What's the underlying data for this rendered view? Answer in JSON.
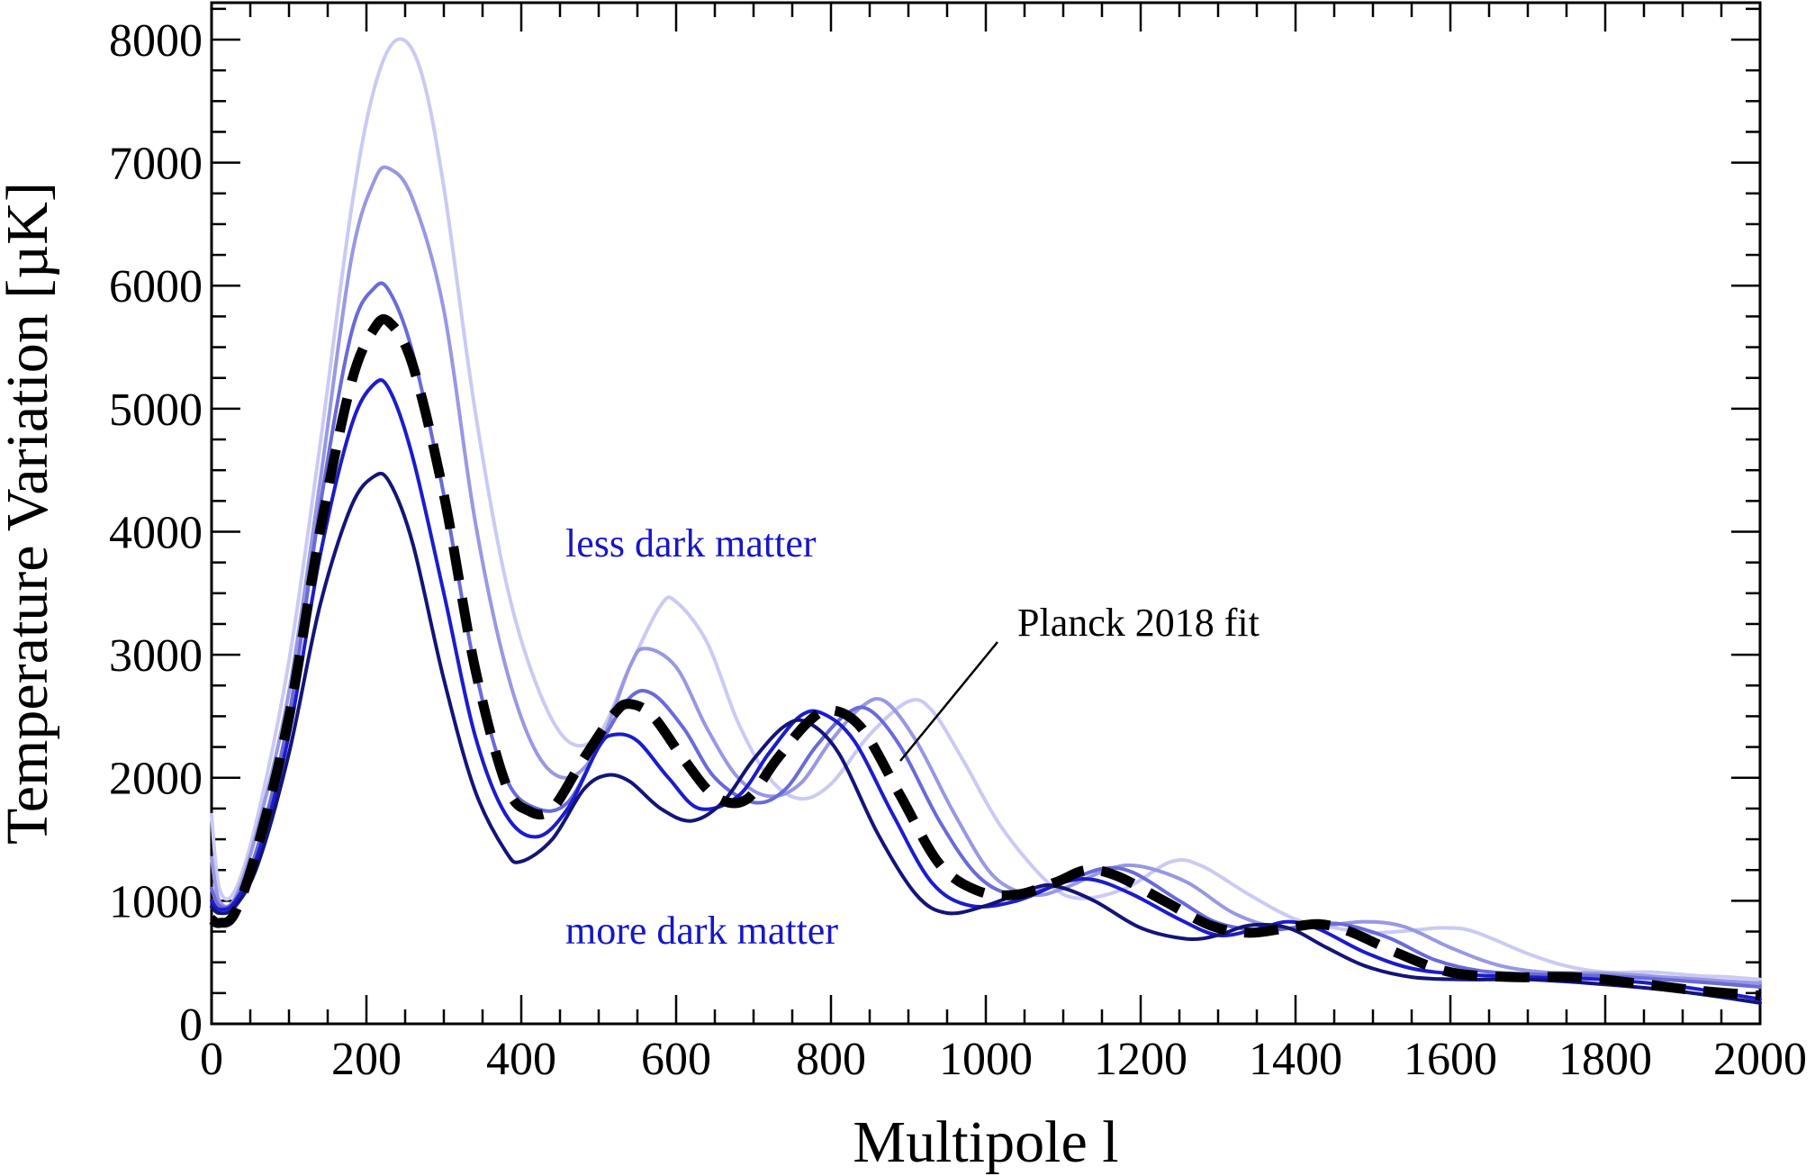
{
  "chart_data": {
    "type": "line",
    "xlabel": "Multipole l",
    "ylabel": "Temperature Variation [µK]",
    "xlim": [
      0,
      2000
    ],
    "ylim": [
      0,
      8300
    ],
    "xticks": [
      0,
      200,
      400,
      600,
      800,
      1000,
      1200,
      1400,
      1600,
      1800,
      2000
    ],
    "yticks": [
      0,
      1000,
      2000,
      3000,
      4000,
      5000,
      6000,
      7000,
      8000
    ],
    "grid": false,
    "legend": "none",
    "annotations": {
      "less": "less dark matter",
      "more": "more dark matter",
      "fit": "Planck 2018 fit"
    },
    "series": [
      {
        "color": "#cacaf4",
        "width": 4,
        "dash": false,
        "points": [
          [
            0,
            1700
          ],
          [
            10,
            1100
          ],
          [
            30,
            1080
          ],
          [
            60,
            1700
          ],
          [
            100,
            2950
          ],
          [
            140,
            4700
          ],
          [
            180,
            6600
          ],
          [
            210,
            7600
          ],
          [
            240,
            8000
          ],
          [
            270,
            7750
          ],
          [
            300,
            6800
          ],
          [
            340,
            5000
          ],
          [
            380,
            3600
          ],
          [
            420,
            2750
          ],
          [
            460,
            2300
          ],
          [
            500,
            2350
          ],
          [
            540,
            2900
          ],
          [
            580,
            3400
          ],
          [
            600,
            3430
          ],
          [
            640,
            3100
          ],
          [
            680,
            2450
          ],
          [
            720,
            2000
          ],
          [
            760,
            1830
          ],
          [
            800,
            1950
          ],
          [
            850,
            2350
          ],
          [
            900,
            2620
          ],
          [
            930,
            2550
          ],
          [
            970,
            2150
          ],
          [
            1020,
            1600
          ],
          [
            1080,
            1150
          ],
          [
            1120,
            1020
          ],
          [
            1180,
            1100
          ],
          [
            1240,
            1320
          ],
          [
            1280,
            1280
          ],
          [
            1340,
            1050
          ],
          [
            1400,
            850
          ],
          [
            1450,
            780
          ],
          [
            1500,
            740
          ],
          [
            1550,
            760
          ],
          [
            1590,
            780
          ],
          [
            1630,
            750
          ],
          [
            1700,
            570
          ],
          [
            1750,
            470
          ],
          [
            1800,
            420
          ],
          [
            1860,
            420
          ],
          [
            1920,
            390
          ],
          [
            1960,
            380
          ],
          [
            2000,
            360
          ]
        ]
      },
      {
        "color": "#9898e2",
        "width": 4,
        "dash": false,
        "points": [
          [
            0,
            1350
          ],
          [
            10,
            1000
          ],
          [
            30,
            1020
          ],
          [
            60,
            1600
          ],
          [
            100,
            2700
          ],
          [
            140,
            4400
          ],
          [
            180,
            6200
          ],
          [
            210,
            6850
          ],
          [
            230,
            6950
          ],
          [
            260,
            6700
          ],
          [
            300,
            5800
          ],
          [
            340,
            4100
          ],
          [
            380,
            2900
          ],
          [
            420,
            2200
          ],
          [
            460,
            2000
          ],
          [
            500,
            2250
          ],
          [
            540,
            2900
          ],
          [
            560,
            3050
          ],
          [
            600,
            2900
          ],
          [
            640,
            2400
          ],
          [
            680,
            2000
          ],
          [
            720,
            1850
          ],
          [
            760,
            1950
          ],
          [
            800,
            2300
          ],
          [
            840,
            2580
          ],
          [
            870,
            2620
          ],
          [
            910,
            2300
          ],
          [
            960,
            1700
          ],
          [
            1010,
            1200
          ],
          [
            1060,
            1050
          ],
          [
            1100,
            1100
          ],
          [
            1160,
            1260
          ],
          [
            1200,
            1280
          ],
          [
            1260,
            1150
          ],
          [
            1320,
            900
          ],
          [
            1380,
            780
          ],
          [
            1440,
            800
          ],
          [
            1490,
            830
          ],
          [
            1540,
            790
          ],
          [
            1600,
            620
          ],
          [
            1660,
            480
          ],
          [
            1720,
            420
          ],
          [
            1800,
            410
          ],
          [
            1900,
            370
          ],
          [
            2000,
            330
          ]
        ]
      },
      {
        "color": "#6a6ad8",
        "width": 4,
        "dash": false,
        "points": [
          [
            0,
            1100
          ],
          [
            10,
            960
          ],
          [
            30,
            1000
          ],
          [
            60,
            1450
          ],
          [
            100,
            2500
          ],
          [
            140,
            4200
          ],
          [
            180,
            5600
          ],
          [
            210,
            5980
          ],
          [
            230,
            5950
          ],
          [
            260,
            5450
          ],
          [
            300,
            4300
          ],
          [
            340,
            2900
          ],
          [
            380,
            2000
          ],
          [
            420,
            1750
          ],
          [
            460,
            1800
          ],
          [
            500,
            2250
          ],
          [
            540,
            2650
          ],
          [
            570,
            2680
          ],
          [
            610,
            2400
          ],
          [
            650,
            2000
          ],
          [
            700,
            1800
          ],
          [
            740,
            1900
          ],
          [
            780,
            2250
          ],
          [
            820,
            2520
          ],
          [
            850,
            2550
          ],
          [
            890,
            2250
          ],
          [
            940,
            1650
          ],
          [
            990,
            1200
          ],
          [
            1040,
            1050
          ],
          [
            1100,
            1150
          ],
          [
            1150,
            1260
          ],
          [
            1190,
            1230
          ],
          [
            1250,
            1000
          ],
          [
            1300,
            820
          ],
          [
            1360,
            760
          ],
          [
            1420,
            800
          ],
          [
            1460,
            810
          ],
          [
            1520,
            700
          ],
          [
            1580,
            520
          ],
          [
            1640,
            430
          ],
          [
            1720,
            400
          ],
          [
            1800,
            390
          ],
          [
            1900,
            350
          ],
          [
            2000,
            300
          ]
        ]
      },
      {
        "color": "#1c1ccc",
        "width": 4,
        "dash": false,
        "points": [
          [
            0,
            1000
          ],
          [
            10,
            930
          ],
          [
            30,
            990
          ],
          [
            60,
            1380
          ],
          [
            100,
            2350
          ],
          [
            140,
            3800
          ],
          [
            180,
            4850
          ],
          [
            210,
            5200
          ],
          [
            230,
            5150
          ],
          [
            260,
            4600
          ],
          [
            300,
            3500
          ],
          [
            340,
            2350
          ],
          [
            380,
            1700
          ],
          [
            420,
            1520
          ],
          [
            460,
            1750
          ],
          [
            500,
            2250
          ],
          [
            520,
            2350
          ],
          [
            550,
            2300
          ],
          [
            590,
            2000
          ],
          [
            630,
            1750
          ],
          [
            680,
            1850
          ],
          [
            720,
            2200
          ],
          [
            760,
            2500
          ],
          [
            790,
            2520
          ],
          [
            830,
            2300
          ],
          [
            880,
            1700
          ],
          [
            930,
            1150
          ],
          [
            980,
            960
          ],
          [
            1040,
            1000
          ],
          [
            1100,
            1150
          ],
          [
            1140,
            1170
          ],
          [
            1190,
            1050
          ],
          [
            1250,
            850
          ],
          [
            1300,
            720
          ],
          [
            1350,
            770
          ],
          [
            1390,
            830
          ],
          [
            1430,
            770
          ],
          [
            1490,
            580
          ],
          [
            1550,
            450
          ],
          [
            1620,
            400
          ],
          [
            1700,
            380
          ],
          [
            1800,
            360
          ],
          [
            1900,
            300
          ],
          [
            2000,
            200
          ]
        ]
      },
      {
        "color": "#141478",
        "width": 4,
        "dash": false,
        "points": [
          [
            0,
            950
          ],
          [
            10,
            900
          ],
          [
            30,
            950
          ],
          [
            60,
            1300
          ],
          [
            100,
            2200
          ],
          [
            140,
            3400
          ],
          [
            180,
            4200
          ],
          [
            210,
            4450
          ],
          [
            230,
            4400
          ],
          [
            260,
            3900
          ],
          [
            300,
            2800
          ],
          [
            340,
            1900
          ],
          [
            380,
            1400
          ],
          [
            400,
            1320
          ],
          [
            440,
            1500
          ],
          [
            480,
            1900
          ],
          [
            510,
            2020
          ],
          [
            540,
            1970
          ],
          [
            580,
            1750
          ],
          [
            620,
            1650
          ],
          [
            660,
            1800
          ],
          [
            700,
            2150
          ],
          [
            740,
            2420
          ],
          [
            770,
            2450
          ],
          [
            810,
            2200
          ],
          [
            860,
            1550
          ],
          [
            910,
            1050
          ],
          [
            950,
            900
          ],
          [
            1000,
            960
          ],
          [
            1060,
            1100
          ],
          [
            1090,
            1120
          ],
          [
            1140,
            1000
          ],
          [
            1200,
            780
          ],
          [
            1260,
            690
          ],
          [
            1300,
            720
          ],
          [
            1340,
            800
          ],
          [
            1390,
            780
          ],
          [
            1440,
            620
          ],
          [
            1490,
            470
          ],
          [
            1550,
            380
          ],
          [
            1620,
            360
          ],
          [
            1700,
            360
          ],
          [
            1800,
            320
          ],
          [
            1900,
            260
          ],
          [
            2000,
            170
          ]
        ]
      },
      {
        "color": "#000000",
        "width": 11,
        "dash": true,
        "points": [
          [
            0,
            850
          ],
          [
            10,
            820
          ],
          [
            30,
            900
          ],
          [
            60,
            1450
          ],
          [
            100,
            2500
          ],
          [
            140,
            4000
          ],
          [
            180,
            5200
          ],
          [
            210,
            5650
          ],
          [
            230,
            5700
          ],
          [
            260,
            5350
          ],
          [
            300,
            4300
          ],
          [
            340,
            2900
          ],
          [
            380,
            1950
          ],
          [
            410,
            1730
          ],
          [
            440,
            1750
          ],
          [
            480,
            2150
          ],
          [
            520,
            2520
          ],
          [
            540,
            2600
          ],
          [
            570,
            2500
          ],
          [
            610,
            2150
          ],
          [
            650,
            1850
          ],
          [
            690,
            1820
          ],
          [
            730,
            2150
          ],
          [
            770,
            2450
          ],
          [
            800,
            2550
          ],
          [
            840,
            2400
          ],
          [
            890,
            1850
          ],
          [
            940,
            1300
          ],
          [
            990,
            1080
          ],
          [
            1040,
            1050
          ],
          [
            1090,
            1150
          ],
          [
            1130,
            1250
          ],
          [
            1170,
            1200
          ],
          [
            1230,
            1000
          ],
          [
            1290,
            800
          ],
          [
            1340,
            740
          ],
          [
            1390,
            780
          ],
          [
            1430,
            810
          ],
          [
            1470,
            750
          ],
          [
            1530,
            580
          ],
          [
            1600,
            420
          ],
          [
            1680,
            380
          ],
          [
            1760,
            380
          ],
          [
            1840,
            330
          ],
          [
            1920,
            270
          ],
          [
            2000,
            230
          ]
        ]
      }
    ]
  }
}
